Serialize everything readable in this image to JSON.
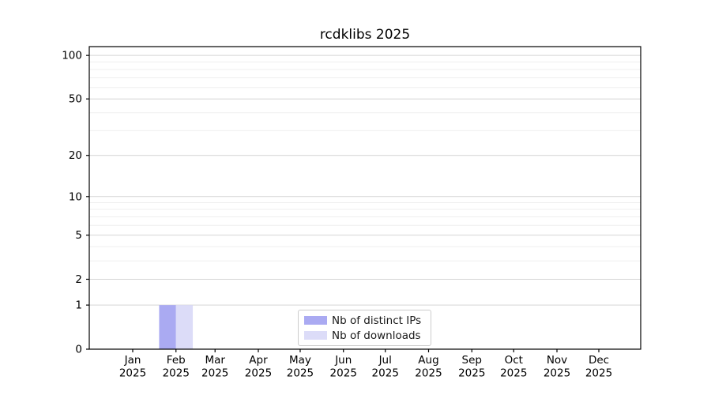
{
  "title": "rcdklibs 2025",
  "chart_data": {
    "type": "bar",
    "title": "rcdklibs 2025",
    "x_tick_labels": [
      [
        "Jan",
        "2025"
      ],
      [
        "Feb",
        "2025"
      ],
      [
        "Mar",
        "2025"
      ],
      [
        "Apr",
        "2025"
      ],
      [
        "May",
        "2025"
      ],
      [
        "Jun",
        "2025"
      ],
      [
        "Jul",
        "2025"
      ],
      [
        "Aug",
        "2025"
      ],
      [
        "Sep",
        "2025"
      ],
      [
        "Oct",
        "2025"
      ],
      [
        "Nov",
        "2025"
      ],
      [
        "Dec",
        "2025"
      ]
    ],
    "series": [
      {
        "name": "Nb of distinct IPs",
        "color": "#aaaaf2",
        "values": [
          0,
          1,
          0,
          0,
          0,
          0,
          0,
          0,
          0,
          0,
          0,
          0
        ]
      },
      {
        "name": "Nb of downloads",
        "color": "#dcdcf8",
        "values": [
          0,
          1,
          0,
          0,
          0,
          0,
          0,
          0,
          0,
          0,
          0,
          0
        ]
      }
    ],
    "xlabel": "",
    "ylabel": "",
    "yscale": "log1p",
    "yticks": [
      0,
      1,
      2,
      5,
      10,
      20,
      50,
      100
    ],
    "minor_yticks": [
      3,
      4,
      6,
      7,
      8,
      9,
      30,
      40,
      60,
      70,
      80,
      90
    ],
    "ylim": [
      0,
      115
    ],
    "grid": "horizontal major+minor",
    "legend_position": "lower center inside",
    "colors": {
      "axis": "#000000",
      "tick_label": "#000000",
      "major_grid": "#d4d4d4",
      "minor_grid": "#efefef",
      "background": "#ffffff",
      "legend_border": "#cccccc"
    }
  }
}
